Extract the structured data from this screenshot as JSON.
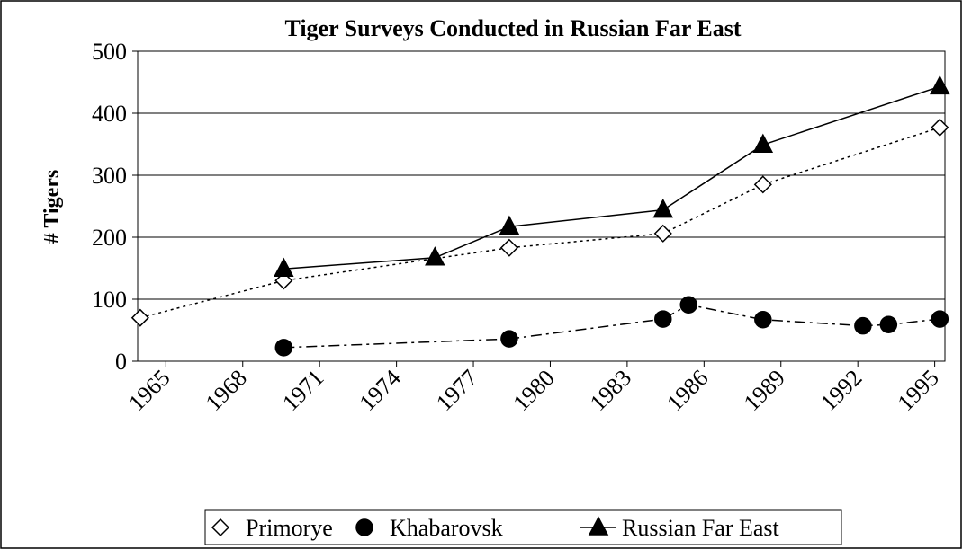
{
  "chart_data": {
    "type": "line",
    "title": "Tiger Surveys Conducted in Russian Far East",
    "y_label": "# Tigers",
    "xlim": [
      1963.9,
      1995.4
    ],
    "xticks": [
      1965,
      1968,
      1971,
      1974,
      1977,
      1980,
      1983,
      1986,
      1989,
      1992,
      1995
    ],
    "ylim": [
      0,
      500
    ],
    "yticks": [
      0,
      100,
      200,
      300,
      400,
      500
    ],
    "grid": true,
    "legend": "bottom",
    "series": [
      {
        "name": "Primorye",
        "color": "#000000",
        "marker": "diamond",
        "line": "dotted",
        "x": [
          1964,
          1969.6,
          1978.4,
          1984.4,
          1988.3,
          1995.2
        ],
        "values": [
          70,
          130,
          183,
          206,
          285,
          377
        ]
      },
      {
        "name": "Khabarovsk",
        "color": "#000000",
        "marker": "circle",
        "line": "dash-dot",
        "x": [
          1969.6,
          1978.4,
          1984.4,
          1985.4,
          1988.3,
          1992.2,
          1993.2,
          1995.2
        ],
        "values": [
          22,
          36,
          68,
          91,
          67,
          57,
          59,
          68
        ]
      },
      {
        "name": "Russian Far East",
        "color": "#000000",
        "marker": "triangle",
        "line": "solid",
        "x": [
          1969.6,
          1975.5,
          1978.4,
          1984.4,
          1988.3,
          1995.2
        ],
        "values": [
          149,
          167,
          217,
          244,
          349,
          443
        ]
      }
    ]
  }
}
